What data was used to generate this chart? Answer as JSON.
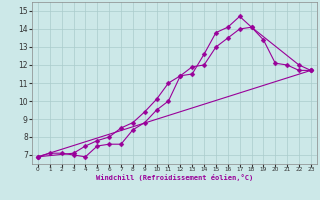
{
  "xlabel": "Windchill (Refroidissement éolien,°C)",
  "xlim": [
    -0.5,
    23.5
  ],
  "ylim": [
    6.5,
    15.5
  ],
  "yticks": [
    7,
    8,
    9,
    10,
    11,
    12,
    13,
    14,
    15
  ],
  "xticks": [
    0,
    1,
    2,
    3,
    4,
    5,
    6,
    7,
    8,
    9,
    10,
    11,
    12,
    13,
    14,
    15,
    16,
    17,
    18,
    19,
    20,
    21,
    22,
    23
  ],
  "bg_color": "#cce8e8",
  "grid_color": "#aacccc",
  "line_color": "#990099",
  "line1_x": [
    0,
    1,
    2,
    3,
    4,
    5,
    6,
    7,
    8,
    9,
    10,
    11,
    12,
    13,
    14,
    15,
    16,
    17,
    18,
    19,
    20,
    21,
    22,
    23
  ],
  "line1_y": [
    6.9,
    7.1,
    7.1,
    7.0,
    6.9,
    7.5,
    7.6,
    7.6,
    8.4,
    8.8,
    9.5,
    10.0,
    11.4,
    11.5,
    12.6,
    13.8,
    14.1,
    14.7,
    14.1,
    13.4,
    12.1,
    12.0,
    11.7,
    11.7
  ],
  "line2_x": [
    0,
    3,
    4,
    5,
    6,
    7,
    8,
    9,
    10,
    11,
    12,
    13,
    14,
    15,
    16,
    17,
    18,
    22,
    23
  ],
  "line2_y": [
    6.9,
    7.1,
    7.5,
    7.8,
    8.0,
    8.5,
    8.8,
    9.4,
    10.1,
    11.0,
    11.4,
    11.9,
    12.0,
    13.0,
    13.5,
    14.0,
    14.1,
    12.0,
    11.7
  ],
  "line3_x": [
    0,
    23
  ],
  "line3_y": [
    6.9,
    11.7
  ]
}
